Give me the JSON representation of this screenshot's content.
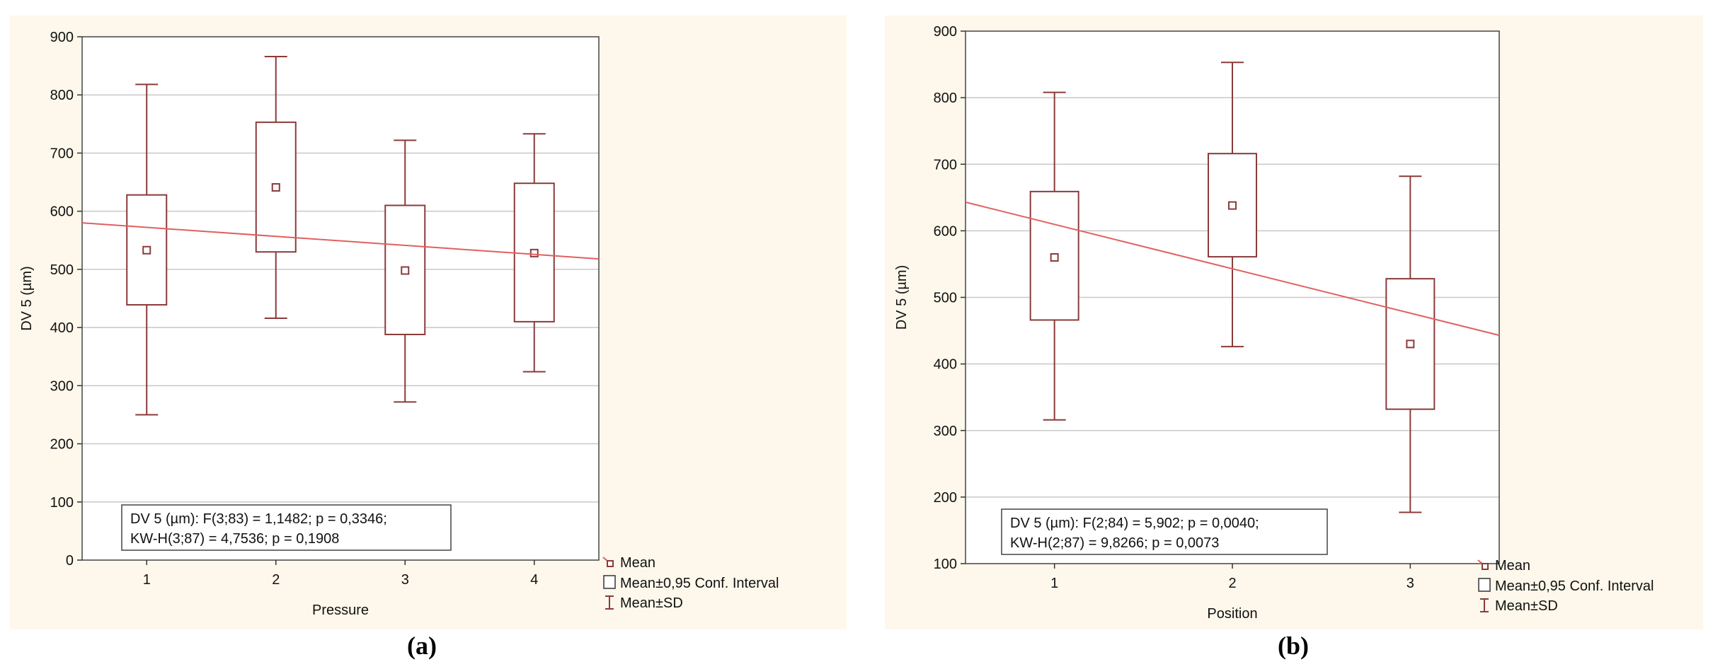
{
  "chart_data": [
    {
      "type": "box",
      "panel_label": "(a)",
      "xlabel": "Pressure",
      "ylabel": "DV 5 (µm)",
      "categories": [
        "1",
        "2",
        "3",
        "4"
      ],
      "ylim": [
        0,
        900
      ],
      "yticks": [
        "0",
        "100",
        "200",
        "300",
        "400",
        "500",
        "600",
        "700",
        "800",
        "900"
      ],
      "grid": true,
      "series": [
        {
          "name": "Mean",
          "values": [
            533,
            641,
            498,
            528
          ]
        },
        {
          "name": "Mean±0,95 Conf. Interval",
          "low": [
            439,
            530,
            388,
            410
          ],
          "high": [
            628,
            753,
            610,
            648
          ]
        },
        {
          "name": "Mean±SD",
          "low": [
            250,
            416,
            272,
            324
          ],
          "high": [
            818,
            866,
            722,
            733
          ]
        }
      ],
      "trend_line": {
        "x": [
          0.5,
          4.5
        ],
        "y": [
          580,
          518
        ]
      },
      "stats": [
        "DV 5 (µm):   F(3;83) = 1,1482; p = 0,3346;",
        "KW-H(3;87) = 4,7536; p = 0,1908"
      ],
      "legend": [
        "Mean",
        "Mean±0,95 Conf. Interval",
        "Mean±SD"
      ],
      "legend_position": "bottom-right outside"
    },
    {
      "type": "box",
      "panel_label": "(b)",
      "xlabel": "Position",
      "ylabel": "DV 5 (µm)",
      "categories": [
        "1",
        "2",
        "3"
      ],
      "ylim": [
        100,
        900
      ],
      "yticks": [
        "100",
        "200",
        "300",
        "400",
        "500",
        "600",
        "700",
        "800",
        "900"
      ],
      "grid": true,
      "series": [
        {
          "name": "Mean",
          "values": [
            560,
            638,
            430
          ]
        },
        {
          "name": "Mean±0,95 Conf. Interval",
          "low": [
            466,
            561,
            332
          ],
          "high": [
            659,
            716,
            528
          ]
        },
        {
          "name": "Mean±SD",
          "low": [
            316,
            426,
            177
          ],
          "high": [
            808,
            853,
            682
          ]
        }
      ],
      "trend_line": {
        "x": [
          0.5,
          3.5
        ],
        "y": [
          643,
          443
        ]
      },
      "stats": [
        "DV 5 (µm):   F(2;84) = 5,902; p = 0,0040;",
        "KW-H(2;87) = 9,8266; p = 0,0073"
      ],
      "legend": [
        "Mean",
        "Mean±0,95 Conf. Interval",
        "Mean±SD"
      ],
      "legend_position": "bottom-right outside"
    }
  ],
  "colors": {
    "series": "#8b3a3a",
    "trend": "#e06060",
    "grid": "#c8c8c8",
    "panel_bg": "#fdf8eb"
  }
}
